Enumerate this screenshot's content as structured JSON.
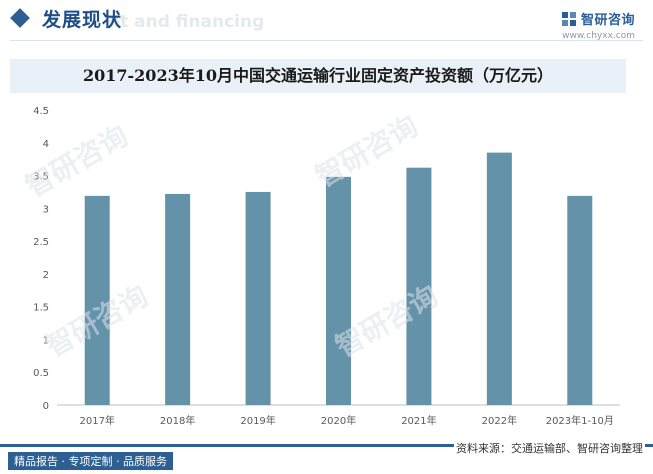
{
  "header": {
    "title": "发展现状",
    "watermark_text": "nt and financing",
    "brand_name": "智研咨询",
    "brand_url": "www.chyxx.com"
  },
  "chart_data": {
    "type": "bar",
    "title": "2017-2023年10月中国交通运输行业固定资产投资额（万亿元）",
    "categories": [
      "2017年",
      "2018年",
      "2019年",
      "2020年",
      "2021年",
      "2022年",
      "2023年1-10月"
    ],
    "values": [
      3.19,
      3.22,
      3.25,
      3.48,
      3.62,
      3.85,
      3.19
    ],
    "ylim": [
      0,
      4.5
    ],
    "yticks": [
      "0",
      "0.5",
      "1",
      "1.5",
      "2",
      "2.5",
      "3",
      "3.5",
      "4",
      "4.5"
    ],
    "xlabel": "",
    "ylabel": "",
    "bar_color": "#6392a9",
    "grid": false
  },
  "footer": {
    "left_text": "精品报告 · 专项定制 · 品质服务",
    "source_text": "资料来源：交通运输部、智研咨询整理"
  },
  "colors": {
    "accent": "#2e5f93",
    "title_bar": "#eaf0f7"
  },
  "watermark": "智研咨询"
}
